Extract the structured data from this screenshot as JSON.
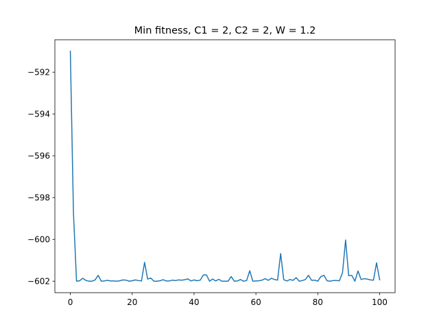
{
  "chart_data": {
    "type": "line",
    "title": "Min fitness, C1 = 2, C2 = 2, W = 1.2",
    "xlabel": "",
    "ylabel": "",
    "xlim": [
      -5,
      105
    ],
    "ylim": [
      -602.55,
      -590.45
    ],
    "grid": false,
    "x_ticks": [
      0,
      20,
      40,
      60,
      80,
      100
    ],
    "x_tick_labels": [
      "0",
      "20",
      "40",
      "60",
      "80",
      "100"
    ],
    "y_ticks": [
      -592,
      -594,
      -596,
      -598,
      -600,
      -602
    ],
    "y_tick_labels": [
      "−592",
      "−594",
      "−596",
      "−598",
      "−600",
      "−602"
    ],
    "series": [
      {
        "color": "#1f77b4",
        "x": [
          0,
          1,
          2,
          3,
          4,
          5,
          6,
          7,
          8,
          9,
          10,
          11,
          12,
          13,
          14,
          15,
          16,
          17,
          18,
          19,
          20,
          21,
          22,
          23,
          24,
          25,
          26,
          27,
          28,
          29,
          30,
          31,
          32,
          33,
          34,
          35,
          36,
          37,
          38,
          39,
          40,
          41,
          42,
          43,
          44,
          45,
          46,
          47,
          48,
          49,
          50,
          51,
          52,
          53,
          54,
          55,
          56,
          57,
          58,
          59,
          60,
          61,
          62,
          63,
          64,
          65,
          66,
          67,
          68,
          69,
          70,
          71,
          72,
          73,
          74,
          75,
          76,
          77,
          78,
          79,
          80,
          81,
          82,
          83,
          84,
          85,
          86,
          87,
          88,
          89,
          90,
          91,
          92,
          93,
          94,
          95,
          96,
          97,
          98,
          99,
          100
        ],
        "values": [
          -591.0,
          -598.7,
          -602.0,
          -601.98,
          -601.86,
          -601.96,
          -602.0,
          -602.0,
          -601.94,
          -601.72,
          -602.0,
          -601.99,
          -601.96,
          -601.99,
          -601.99,
          -602.0,
          -601.98,
          -601.94,
          -601.95,
          -602.0,
          -601.98,
          -601.94,
          -601.97,
          -601.99,
          -601.1,
          -601.9,
          -601.85,
          -602.0,
          -602.0,
          -601.98,
          -601.93,
          -601.99,
          -601.99,
          -601.95,
          -601.97,
          -601.94,
          -601.95,
          -601.93,
          -601.89,
          -601.99,
          -601.94,
          -601.98,
          -601.95,
          -601.7,
          -601.7,
          -602.0,
          -601.9,
          -601.99,
          -601.91,
          -602.0,
          -602.0,
          -602.0,
          -601.78,
          -602.0,
          -601.99,
          -601.92,
          -602.0,
          -601.97,
          -601.5,
          -602.0,
          -601.99,
          -601.98,
          -601.95,
          -601.88,
          -601.96,
          -601.86,
          -601.92,
          -601.95,
          -600.68,
          -601.93,
          -601.99,
          -601.92,
          -601.96,
          -601.83,
          -602.0,
          -601.97,
          -601.92,
          -601.72,
          -601.96,
          -601.95,
          -602.0,
          -601.78,
          -601.72,
          -601.98,
          -602.0,
          -601.97,
          -601.97,
          -601.98,
          -601.59,
          -600.03,
          -601.74,
          -601.72,
          -602.0,
          -601.51,
          -601.92,
          -601.88,
          -601.9,
          -601.94,
          -601.95,
          -601.12,
          -601.93
        ]
      }
    ]
  }
}
